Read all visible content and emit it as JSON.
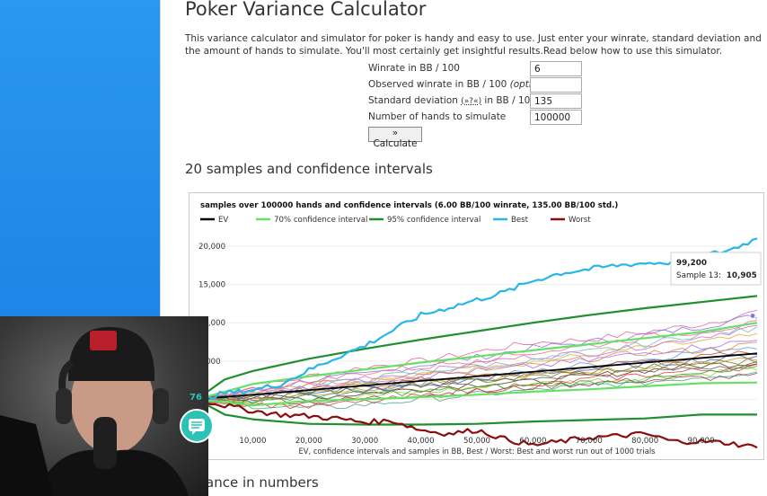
{
  "page": {
    "title": "Poker Variance Calculator",
    "intro": "This variance calculator and simulator for poker is handy and easy to use. Just enter your winrate, standard deviation and the amount of hands to simulate. You'll most certainly get insightful results.Read below how to use this simulator."
  },
  "form": {
    "winrate_label": "Winrate in BB / 100",
    "winrate_value": "6",
    "observed_label": "Observed winrate in BB / 100",
    "observed_optional": "(optional)",
    "observed_value": "",
    "stddev_label_prefix": "Standard deviation",
    "stddev_help": "(»?«)",
    "stddev_label_suffix": "in BB / 100",
    "stddev_value": "135",
    "hands_label": "Number of hands to simulate",
    "hands_value": "100000",
    "calculate_label": "» Calculate"
  },
  "section_samples_title": "20 samples and confidence intervals",
  "section_numbers_title_partial": "ance in numbers",
  "overlay": {
    "chat_count": "76"
  },
  "chart_data": {
    "type": "line",
    "title": "samples over 100000 hands and confidence intervals (6.00 BB/100 winrate, 135.00 BB/100 std.)",
    "xlabel": "EV, confidence intervals and samples in BB, Best / Worst: Best and worst run out of 1000 trials",
    "ylabel": "",
    "xlim": [
      0,
      100000
    ],
    "ylim": [
      -5000,
      22000
    ],
    "x_ticks": [
      "10,000",
      "20,000",
      "30,000",
      "40,000",
      "50,000",
      "60,000",
      "70,000",
      "80,000",
      "90,000"
    ],
    "y_ticks": [
      "20,000",
      "15,000",
      "10,000",
      "5,000",
      "00"
    ],
    "legend": [
      {
        "name": "EV",
        "color": "#000000"
      },
      {
        "name": "70% confidence interval",
        "color": "#66e066"
      },
      {
        "name": "95% confidence interval",
        "color": "#1f8f2f"
      },
      {
        "name": "Best",
        "color": "#29b6e8"
      },
      {
        "name": "Worst",
        "color": "#8b0e0e"
      }
    ],
    "tooltip": {
      "x_label": "99,200",
      "series_label": "Sample 13:",
      "value_label": "10,905"
    },
    "series": [
      {
        "name": "EV",
        "color": "#000000",
        "points": [
          [
            0,
            0
          ],
          [
            100000,
            6000
          ]
        ]
      },
      {
        "name": "70% confidence interval",
        "color": "#66e066",
        "points": [
          [
            0,
            0
          ],
          [
            10000,
            2000
          ],
          [
            20000,
            3000
          ],
          [
            30000,
            3900
          ],
          [
            40000,
            4800
          ],
          [
            50000,
            5600
          ],
          [
            60000,
            6400
          ],
          [
            70000,
            7200
          ],
          [
            80000,
            8000
          ],
          [
            90000,
            8800
          ],
          [
            100000,
            10000
          ]
        ]
      },
      {
        "name": "70% lower",
        "color": "#66e066",
        "points": [
          [
            0,
            0
          ],
          [
            10000,
            -800
          ],
          [
            20000,
            -200
          ],
          [
            30000,
            0
          ],
          [
            40000,
            300
          ],
          [
            50000,
            600
          ],
          [
            60000,
            1000
          ],
          [
            70000,
            1300
          ],
          [
            80000,
            1700
          ],
          [
            90000,
            2100
          ],
          [
            100000,
            2200
          ]
        ]
      },
      {
        "name": "95% confidence interval",
        "color": "#1f8f2f",
        "points": [
          [
            0,
            0
          ],
          [
            5000,
            2600
          ],
          [
            10000,
            3700
          ],
          [
            20000,
            5300
          ],
          [
            30000,
            6600
          ],
          [
            40000,
            7800
          ],
          [
            50000,
            8900
          ],
          [
            60000,
            10000
          ],
          [
            70000,
            11000
          ],
          [
            80000,
            11900
          ],
          [
            90000,
            12700
          ],
          [
            100000,
            13500
          ]
        ]
      },
      {
        "name": "95% lower",
        "color": "#1f8f2f",
        "points": [
          [
            0,
            0
          ],
          [
            5000,
            -2000
          ],
          [
            10000,
            -2600
          ],
          [
            20000,
            -3200
          ],
          [
            30000,
            -3300
          ],
          [
            40000,
            -3300
          ],
          [
            50000,
            -3200
          ],
          [
            60000,
            -2900
          ],
          [
            70000,
            -2700
          ],
          [
            80000,
            -2500
          ],
          [
            90000,
            -2000
          ],
          [
            100000,
            -2000
          ]
        ]
      },
      {
        "name": "Best",
        "color": "#29b6e8",
        "points": [
          [
            0,
            0
          ],
          [
            5000,
            800
          ],
          [
            10000,
            1200
          ],
          [
            15000,
            2000
          ],
          [
            20000,
            3800
          ],
          [
            25000,
            5500
          ],
          [
            30000,
            7000
          ],
          [
            35000,
            9000
          ],
          [
            40000,
            11000
          ],
          [
            45000,
            12000
          ],
          [
            50000,
            13000
          ],
          [
            55000,
            14000
          ],
          [
            60000,
            15500
          ],
          [
            65000,
            16500
          ],
          [
            70000,
            17000
          ],
          [
            75000,
            17500
          ],
          [
            80000,
            17800
          ],
          [
            85000,
            17900
          ],
          [
            90000,
            18700
          ],
          [
            95000,
            19500
          ],
          [
            100000,
            21000
          ]
        ]
      },
      {
        "name": "Worst",
        "color": "#8b0e0e",
        "points": [
          [
            0,
            0
          ],
          [
            5000,
            -800
          ],
          [
            10000,
            -1500
          ],
          [
            15000,
            -2000
          ],
          [
            20000,
            -2200
          ],
          [
            25000,
            -2500
          ],
          [
            30000,
            -3000
          ],
          [
            35000,
            -2800
          ],
          [
            40000,
            -4000
          ],
          [
            45000,
            -4500
          ],
          [
            50000,
            -4000
          ],
          [
            55000,
            -5200
          ],
          [
            60000,
            -6000
          ],
          [
            65000,
            -5500
          ],
          [
            70000,
            -5000
          ],
          [
            75000,
            -4800
          ],
          [
            80000,
            -4500
          ],
          [
            85000,
            -5500
          ],
          [
            90000,
            -5500
          ],
          [
            95000,
            -5700
          ],
          [
            100000,
            -6300
          ]
        ]
      }
    ],
    "samples": [
      {
        "color": "#e06a9e",
        "values": [
          0,
          1500,
          3000,
          4200,
          5000,
          6200,
          7400,
          7800,
          8800,
          9800,
          11500
        ]
      },
      {
        "color": "#8a78e0",
        "values": [
          0,
          1000,
          2500,
          3200,
          4500,
          5500,
          6700,
          7500,
          8400,
          9500,
          10905
        ]
      },
      {
        "color": "#d8b040",
        "values": [
          0,
          800,
          1400,
          2400,
          3100,
          4000,
          4900,
          5800,
          6800,
          7500,
          8300
        ]
      },
      {
        "color": "#5aa0d8",
        "values": [
          0,
          -300,
          500,
          1200,
          2200,
          3000,
          3600,
          4600,
          5200,
          6300,
          7000
        ]
      },
      {
        "color": "#c05030",
        "values": [
          0,
          700,
          1200,
          1800,
          2500,
          3000,
          3300,
          4200,
          5000,
          5500,
          6200
        ]
      },
      {
        "color": "#6a3a1a",
        "values": [
          0,
          300,
          100,
          800,
          1400,
          2000,
          2300,
          3000,
          3800,
          4400,
          4800
        ]
      },
      {
        "color": "#9ad040",
        "values": [
          0,
          -500,
          -200,
          400,
          900,
          1500,
          2000,
          2400,
          2800,
          3300,
          4200
        ]
      },
      {
        "color": "#d070d0",
        "values": [
          0,
          500,
          1800,
          2900,
          3500,
          4800,
          5600,
          6000,
          7000,
          8200,
          9500
        ]
      },
      {
        "color": "#40b080",
        "values": [
          0,
          -800,
          -1200,
          -700,
          0,
          600,
          1200,
          1800,
          2200,
          3000,
          3600
        ]
      },
      {
        "color": "#e09040",
        "values": [
          0,
          1200,
          2000,
          2200,
          3300,
          4100,
          4500,
          5300,
          6100,
          6400,
          7200
        ]
      },
      {
        "color": "#a04060",
        "values": [
          0,
          200,
          -400,
          100,
          600,
          1000,
          1600,
          2100,
          2500,
          2800,
          3000
        ]
      },
      {
        "color": "#4060c0",
        "values": [
          0,
          600,
          1100,
          1500,
          1700,
          2600,
          3400,
          3900,
          4600,
          5100,
          5800
        ]
      },
      {
        "color": "#c0a020",
        "values": [
          0,
          -200,
          600,
          1500,
          2100,
          2700,
          3100,
          3700,
          4100,
          4900,
          5400
        ]
      },
      {
        "color": "#70c0c0",
        "values": [
          0,
          900,
          1600,
          2600,
          3600,
          4400,
          5000,
          6200,
          7200,
          8600,
          9100
        ]
      },
      {
        "color": "#e04040",
        "values": [
          0,
          -600,
          -900,
          -400,
          400,
          1200,
          1700,
          2600,
          3200,
          3800,
          4300
        ]
      },
      {
        "color": "#808020",
        "values": [
          0,
          400,
          1200,
          1800,
          2200,
          2400,
          3000,
          3500,
          4200,
          4700,
          5000
        ]
      },
      {
        "color": "#b070f0",
        "values": [
          0,
          1100,
          1500,
          2500,
          3000,
          3700,
          4300,
          5100,
          6100,
          6900,
          7700
        ]
      },
      {
        "color": "#30a030",
        "values": [
          0,
          -100,
          300,
          700,
          1000,
          1500,
          1900,
          2200,
          2600,
          3300,
          3900
        ]
      },
      {
        "color": "#f07090",
        "values": [
          0,
          1300,
          2200,
          3500,
          4200,
          5200,
          6100,
          7000,
          8100,
          8900,
          9900
        ]
      },
      {
        "color": "#606060",
        "values": [
          0,
          200,
          900,
          1300,
          2000,
          2300,
          2800,
          3300,
          3600,
          4200,
          4700
        ]
      }
    ]
  }
}
